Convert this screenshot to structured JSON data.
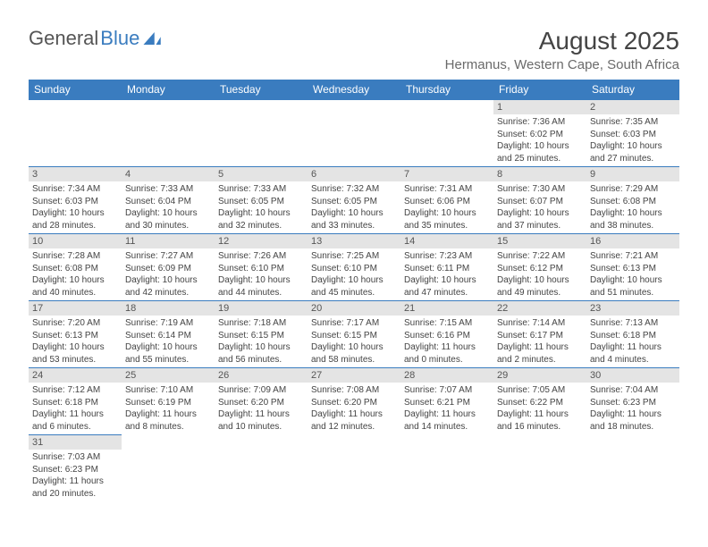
{
  "logo": {
    "part1": "General",
    "part2": "Blue"
  },
  "title": {
    "month_year": "August 2025",
    "location": "Hermanus, Western Cape, South Africa"
  },
  "colors": {
    "header_bg": "#3a7cbf",
    "header_fg": "#ffffff",
    "daynum_bg": "#e4e4e4",
    "text": "#444444",
    "border": "#3a7cbf",
    "background": "#ffffff"
  },
  "typography": {
    "title_fontsize": 28,
    "location_fontsize": 15,
    "header_fontsize": 12,
    "daynum_fontsize": 11,
    "info_fontsize": 10
  },
  "day_headers": [
    "Sunday",
    "Monday",
    "Tuesday",
    "Wednesday",
    "Thursday",
    "Friday",
    "Saturday"
  ],
  "weeks": [
    [
      null,
      null,
      null,
      null,
      null,
      {
        "n": "1",
        "sr": "Sunrise: 7:36 AM",
        "ss": "Sunset: 6:02 PM",
        "d1": "Daylight: 10 hours",
        "d2": "and 25 minutes."
      },
      {
        "n": "2",
        "sr": "Sunrise: 7:35 AM",
        "ss": "Sunset: 6:03 PM",
        "d1": "Daylight: 10 hours",
        "d2": "and 27 minutes."
      }
    ],
    [
      {
        "n": "3",
        "sr": "Sunrise: 7:34 AM",
        "ss": "Sunset: 6:03 PM",
        "d1": "Daylight: 10 hours",
        "d2": "and 28 minutes."
      },
      {
        "n": "4",
        "sr": "Sunrise: 7:33 AM",
        "ss": "Sunset: 6:04 PM",
        "d1": "Daylight: 10 hours",
        "d2": "and 30 minutes."
      },
      {
        "n": "5",
        "sr": "Sunrise: 7:33 AM",
        "ss": "Sunset: 6:05 PM",
        "d1": "Daylight: 10 hours",
        "d2": "and 32 minutes."
      },
      {
        "n": "6",
        "sr": "Sunrise: 7:32 AM",
        "ss": "Sunset: 6:05 PM",
        "d1": "Daylight: 10 hours",
        "d2": "and 33 minutes."
      },
      {
        "n": "7",
        "sr": "Sunrise: 7:31 AM",
        "ss": "Sunset: 6:06 PM",
        "d1": "Daylight: 10 hours",
        "d2": "and 35 minutes."
      },
      {
        "n": "8",
        "sr": "Sunrise: 7:30 AM",
        "ss": "Sunset: 6:07 PM",
        "d1": "Daylight: 10 hours",
        "d2": "and 37 minutes."
      },
      {
        "n": "9",
        "sr": "Sunrise: 7:29 AM",
        "ss": "Sunset: 6:08 PM",
        "d1": "Daylight: 10 hours",
        "d2": "and 38 minutes."
      }
    ],
    [
      {
        "n": "10",
        "sr": "Sunrise: 7:28 AM",
        "ss": "Sunset: 6:08 PM",
        "d1": "Daylight: 10 hours",
        "d2": "and 40 minutes."
      },
      {
        "n": "11",
        "sr": "Sunrise: 7:27 AM",
        "ss": "Sunset: 6:09 PM",
        "d1": "Daylight: 10 hours",
        "d2": "and 42 minutes."
      },
      {
        "n": "12",
        "sr": "Sunrise: 7:26 AM",
        "ss": "Sunset: 6:10 PM",
        "d1": "Daylight: 10 hours",
        "d2": "and 44 minutes."
      },
      {
        "n": "13",
        "sr": "Sunrise: 7:25 AM",
        "ss": "Sunset: 6:10 PM",
        "d1": "Daylight: 10 hours",
        "d2": "and 45 minutes."
      },
      {
        "n": "14",
        "sr": "Sunrise: 7:23 AM",
        "ss": "Sunset: 6:11 PM",
        "d1": "Daylight: 10 hours",
        "d2": "and 47 minutes."
      },
      {
        "n": "15",
        "sr": "Sunrise: 7:22 AM",
        "ss": "Sunset: 6:12 PM",
        "d1": "Daylight: 10 hours",
        "d2": "and 49 minutes."
      },
      {
        "n": "16",
        "sr": "Sunrise: 7:21 AM",
        "ss": "Sunset: 6:13 PM",
        "d1": "Daylight: 10 hours",
        "d2": "and 51 minutes."
      }
    ],
    [
      {
        "n": "17",
        "sr": "Sunrise: 7:20 AM",
        "ss": "Sunset: 6:13 PM",
        "d1": "Daylight: 10 hours",
        "d2": "and 53 minutes."
      },
      {
        "n": "18",
        "sr": "Sunrise: 7:19 AM",
        "ss": "Sunset: 6:14 PM",
        "d1": "Daylight: 10 hours",
        "d2": "and 55 minutes."
      },
      {
        "n": "19",
        "sr": "Sunrise: 7:18 AM",
        "ss": "Sunset: 6:15 PM",
        "d1": "Daylight: 10 hours",
        "d2": "and 56 minutes."
      },
      {
        "n": "20",
        "sr": "Sunrise: 7:17 AM",
        "ss": "Sunset: 6:15 PM",
        "d1": "Daylight: 10 hours",
        "d2": "and 58 minutes."
      },
      {
        "n": "21",
        "sr": "Sunrise: 7:15 AM",
        "ss": "Sunset: 6:16 PM",
        "d1": "Daylight: 11 hours",
        "d2": "and 0 minutes."
      },
      {
        "n": "22",
        "sr": "Sunrise: 7:14 AM",
        "ss": "Sunset: 6:17 PM",
        "d1": "Daylight: 11 hours",
        "d2": "and 2 minutes."
      },
      {
        "n": "23",
        "sr": "Sunrise: 7:13 AM",
        "ss": "Sunset: 6:18 PM",
        "d1": "Daylight: 11 hours",
        "d2": "and 4 minutes."
      }
    ],
    [
      {
        "n": "24",
        "sr": "Sunrise: 7:12 AM",
        "ss": "Sunset: 6:18 PM",
        "d1": "Daylight: 11 hours",
        "d2": "and 6 minutes."
      },
      {
        "n": "25",
        "sr": "Sunrise: 7:10 AM",
        "ss": "Sunset: 6:19 PM",
        "d1": "Daylight: 11 hours",
        "d2": "and 8 minutes."
      },
      {
        "n": "26",
        "sr": "Sunrise: 7:09 AM",
        "ss": "Sunset: 6:20 PM",
        "d1": "Daylight: 11 hours",
        "d2": "and 10 minutes."
      },
      {
        "n": "27",
        "sr": "Sunrise: 7:08 AM",
        "ss": "Sunset: 6:20 PM",
        "d1": "Daylight: 11 hours",
        "d2": "and 12 minutes."
      },
      {
        "n": "28",
        "sr": "Sunrise: 7:07 AM",
        "ss": "Sunset: 6:21 PM",
        "d1": "Daylight: 11 hours",
        "d2": "and 14 minutes."
      },
      {
        "n": "29",
        "sr": "Sunrise: 7:05 AM",
        "ss": "Sunset: 6:22 PM",
        "d1": "Daylight: 11 hours",
        "d2": "and 16 minutes."
      },
      {
        "n": "30",
        "sr": "Sunrise: 7:04 AM",
        "ss": "Sunset: 6:23 PM",
        "d1": "Daylight: 11 hours",
        "d2": "and 18 minutes."
      }
    ],
    [
      {
        "n": "31",
        "sr": "Sunrise: 7:03 AM",
        "ss": "Sunset: 6:23 PM",
        "d1": "Daylight: 11 hours",
        "d2": "and 20 minutes."
      },
      null,
      null,
      null,
      null,
      null,
      null
    ]
  ]
}
